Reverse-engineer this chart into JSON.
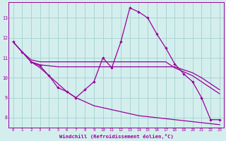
{
  "background_color": "#d4eeee",
  "line_color": "#990099",
  "grid_color": "#aad4d4",
  "xlabel": "Windchill (Refroidissement éolien,°C)",
  "xlabel_color": "#990099",
  "tick_color": "#990099",
  "xlim": [
    -0.5,
    23.5
  ],
  "ylim": [
    7.5,
    13.8
  ],
  "yticks": [
    8,
    9,
    10,
    11,
    12,
    13
  ],
  "xticks": [
    0,
    1,
    2,
    3,
    4,
    5,
    6,
    7,
    8,
    9,
    10,
    11,
    12,
    13,
    14,
    15,
    16,
    17,
    18,
    19,
    20,
    21,
    22,
    23
  ],
  "series": [
    {
      "x": [
        0,
        1,
        2,
        3,
        4,
        5,
        6,
        7,
        8,
        9,
        10,
        11,
        12,
        13,
        14,
        15,
        16,
        17,
        18,
        19,
        20,
        21,
        22,
        23
      ],
      "y": [
        11.8,
        11.3,
        10.8,
        10.6,
        10.1,
        9.5,
        9.3,
        9.0,
        9.4,
        9.8,
        11.0,
        10.5,
        11.8,
        13.5,
        13.3,
        13.0,
        12.2,
        11.5,
        10.7,
        10.2,
        9.8,
        9.0,
        7.9,
        7.9
      ],
      "markers": true
    },
    {
      "x": [
        0,
        1,
        2,
        3,
        4,
        5,
        6,
        7,
        8,
        9,
        10,
        11,
        12,
        13,
        14,
        15,
        16,
        17,
        18,
        19,
        20,
        21,
        22,
        23
      ],
      "y": [
        11.8,
        11.3,
        10.9,
        10.8,
        10.8,
        10.8,
        10.8,
        10.8,
        10.8,
        10.8,
        10.8,
        10.8,
        10.8,
        10.8,
        10.8,
        10.8,
        10.8,
        10.8,
        10.5,
        10.3,
        10.1,
        9.8,
        9.5,
        9.2
      ],
      "markers": false
    },
    {
      "x": [
        2,
        3,
        4,
        5,
        6,
        7,
        8,
        9,
        10,
        11,
        12,
        13,
        14,
        15,
        16,
        17,
        18,
        19,
        20,
        21,
        22,
        23
      ],
      "y": [
        10.8,
        10.65,
        10.6,
        10.55,
        10.55,
        10.55,
        10.55,
        10.55,
        10.55,
        10.55,
        10.55,
        10.55,
        10.55,
        10.55,
        10.55,
        10.55,
        10.55,
        10.4,
        10.25,
        10.0,
        9.7,
        9.4
      ],
      "markers": false
    },
    {
      "x": [
        0,
        1,
        2,
        3,
        4,
        5,
        6,
        7,
        8,
        9,
        10,
        11,
        12,
        13,
        14,
        15,
        16,
        17,
        18,
        19,
        20,
        21,
        22,
        23
      ],
      "y": [
        11.8,
        11.3,
        10.8,
        10.5,
        10.1,
        9.7,
        9.3,
        9.0,
        8.8,
        8.6,
        8.5,
        8.4,
        8.3,
        8.2,
        8.1,
        8.05,
        8.0,
        7.95,
        7.9,
        7.85,
        7.8,
        7.75,
        7.7,
        7.65
      ],
      "markers": false
    }
  ]
}
